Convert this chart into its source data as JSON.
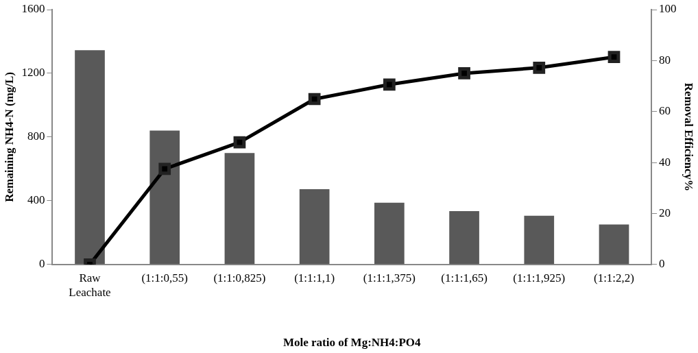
{
  "chart_data": {
    "type": "bar",
    "xlabel": "Mole ratio of Mg:NH4:PO4",
    "ylabel": "Remaining NH4-N (mg/L)",
    "y2label": "Removal Efficiency%",
    "categories": [
      "Raw Leachate",
      "(1:1:0,55)",
      "(1:1:0,825)",
      "(1:1:1,1)",
      "(1:1:1,375)",
      "(1:1:1,65)",
      "(1:1:1,925)",
      "(1:1:2,2)"
    ],
    "series": [
      {
        "color": "#595959",
        "values": [
          1345,
          840,
          699,
          473,
          388,
          335,
          306,
          251
        ]
      },
      {
        "type": "line",
        "axis": "y2",
        "color": "#000000",
        "marker": "square",
        "line_style": "solid",
        "values": [
          0,
          37.5,
          47.9,
          64.9,
          70.6,
          75.0,
          77.2,
          81.4
        ]
      }
    ],
    "ylim": [
      0,
      1600
    ],
    "yticks": [
      0,
      400,
      800,
      1200,
      1600
    ],
    "y2lim": [
      0,
      100
    ],
    "y2ticks": [
      0,
      20,
      40,
      60,
      80,
      100
    ],
    "grid": false,
    "legend": false
  }
}
